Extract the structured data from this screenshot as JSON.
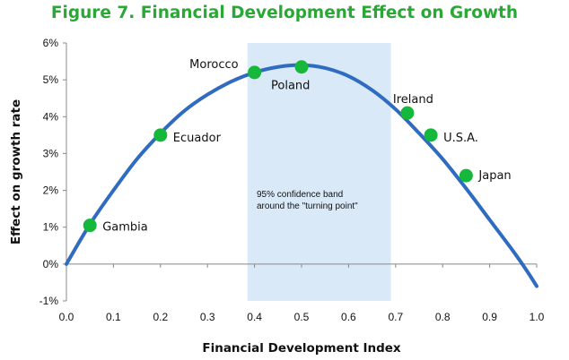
{
  "chart_data": {
    "type": "line",
    "title": "Figure 7. Financial Development Effect on Growth",
    "xlabel": "Financial Development Index",
    "ylabel": "Effect on growth rate",
    "xlim": [
      0.0,
      1.0
    ],
    "ylim": [
      -1,
      6
    ],
    "x_ticks": [
      "0.0",
      "0.1",
      "0.2",
      "0.3",
      "0.4",
      "0.5",
      "0.6",
      "0.7",
      "0.8",
      "0.9",
      "1.0"
    ],
    "y_ticks": [
      "-1%",
      "0%",
      "1%",
      "2%",
      "3%",
      "4%",
      "5%",
      "6%"
    ],
    "curve": {
      "x": [
        0.0,
        0.05,
        0.1,
        0.15,
        0.2,
        0.25,
        0.3,
        0.35,
        0.4,
        0.45,
        0.5,
        0.55,
        0.6,
        0.65,
        0.7,
        0.75,
        0.8,
        0.85,
        0.9,
        0.95,
        0.98,
        1.0
      ],
      "y": [
        0.0,
        1.08,
        2.0,
        2.85,
        3.55,
        4.15,
        4.6,
        4.95,
        5.2,
        5.35,
        5.4,
        5.32,
        5.1,
        4.72,
        4.2,
        3.55,
        2.85,
        2.05,
        1.2,
        0.35,
        -0.2,
        -0.6
      ]
    },
    "band": {
      "x_range": [
        0.385,
        0.69
      ],
      "label": "95%  confidence band around the \"turning point\""
    },
    "points": [
      {
        "name": "Gambia",
        "x": 0.05,
        "y": 1.05
      },
      {
        "name": "Ecuador",
        "x": 0.2,
        "y": 3.5
      },
      {
        "name": "Morocco",
        "x": 0.4,
        "y": 5.2
      },
      {
        "name": "Poland",
        "x": 0.5,
        "y": 5.35
      },
      {
        "name": "Ireland",
        "x": 0.725,
        "y": 4.1
      },
      {
        "name": "U.S.A.",
        "x": 0.775,
        "y": 3.5
      },
      {
        "name": "Japan",
        "x": 0.85,
        "y": 2.4
      }
    ],
    "colors": {
      "title": "#2aa836",
      "curve": "#2f6bc0",
      "points": "#16b83b",
      "band": "#d9e9f7",
      "axis": "#888888"
    }
  }
}
